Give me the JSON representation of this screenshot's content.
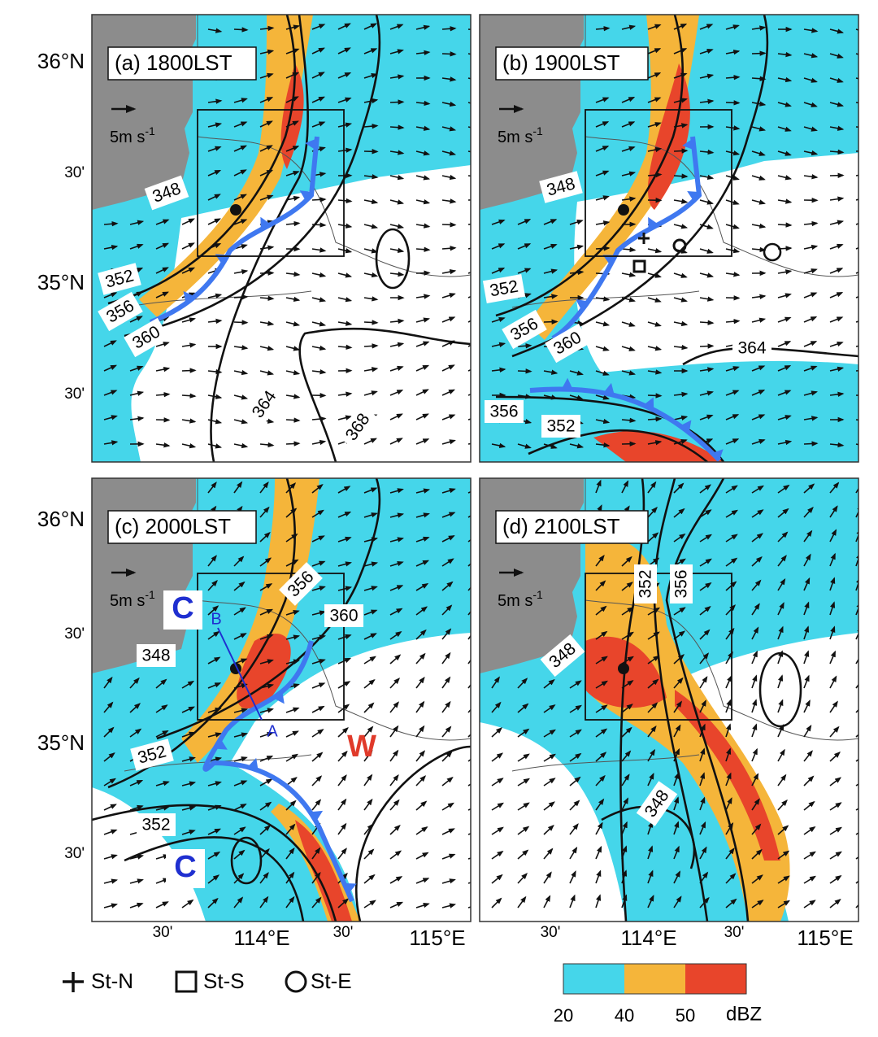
{
  "panels": [
    {
      "title": "(a) 1800LST",
      "scale_label": "5m s",
      "scale_exp": "-1",
      "contour_labels": [
        "348",
        "352",
        "356",
        "360",
        "364",
        "368"
      ]
    },
    {
      "title": "(b) 1900LST",
      "scale_label": "5m s",
      "scale_exp": "-1",
      "contour_labels": [
        "348",
        "352",
        "356",
        "360",
        "364",
        "356",
        "352"
      ]
    },
    {
      "title": "(c) 2000LST",
      "scale_label": "5m s",
      "scale_exp": "-1",
      "contour_labels": [
        "356",
        "360",
        "348",
        "352",
        "352"
      ],
      "annotations": [
        "C",
        "B",
        "A",
        "W",
        "C"
      ]
    },
    {
      "title": "(d) 2100LST",
      "scale_label": "5m s",
      "scale_exp": "-1",
      "contour_labels": [
        "352",
        "356",
        "348",
        "348"
      ]
    }
  ],
  "y_axis_labels": [
    "36°N",
    "30'",
    "35°N",
    "30'"
  ],
  "x_axis_labels": [
    "30'",
    "114°E",
    "30'",
    "115°E"
  ],
  "legend": [
    "St-N",
    "St-S",
    "St-E"
  ],
  "colorbar": {
    "ticks": [
      20,
      40,
      50
    ],
    "unit": "dBZ"
  }
}
